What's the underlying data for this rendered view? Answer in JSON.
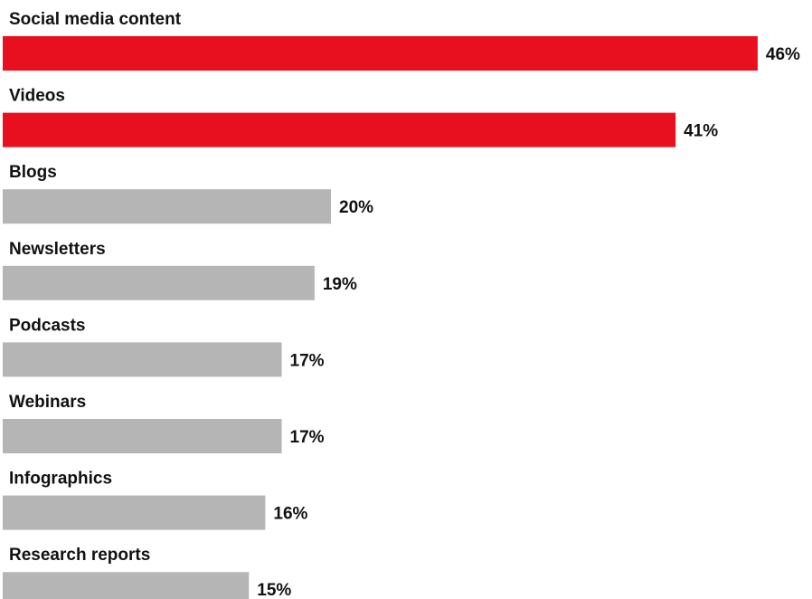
{
  "chart_data": {
    "type": "bar",
    "orientation": "horizontal",
    "categories": [
      "Social media content",
      "Videos",
      "Blogs",
      "Newsletters",
      "Podcasts",
      "Webinars",
      "Infographics",
      "Research reports"
    ],
    "values": [
      46,
      41,
      20,
      19,
      17,
      17,
      16,
      15
    ],
    "value_labels": [
      "46%",
      "41%",
      "20%",
      "19%",
      "17%",
      "17%",
      "16%",
      "15%"
    ],
    "unit": "%",
    "highlighted": [
      true,
      true,
      false,
      false,
      false,
      false,
      false,
      false
    ],
    "colors": {
      "highlight": "#E8101F",
      "default": "#B5B5B5",
      "text": "#111111"
    },
    "title": "",
    "xlabel": "",
    "ylabel": "",
    "grid": false,
    "legend": "none"
  }
}
